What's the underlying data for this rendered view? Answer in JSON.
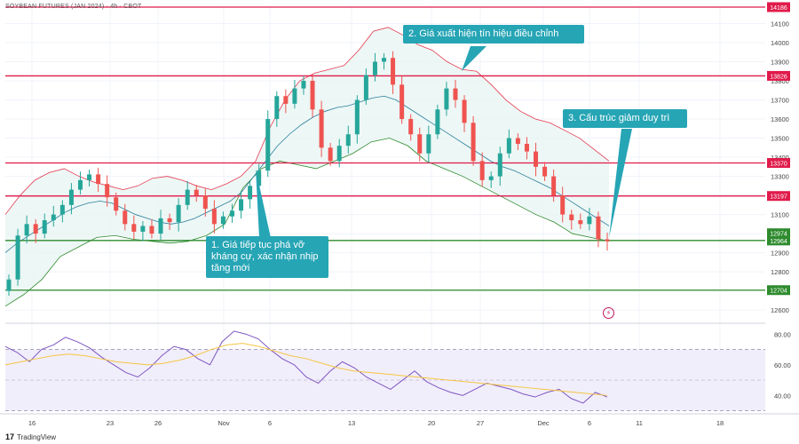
{
  "chart_title": "SOYBEAN FUTURES (JAN 2024) · 4h · CBOT",
  "footer_brand": "TradingView",
  "annotations": [
    {
      "text": "1. Giá tiếp tục phá vỡ kháng cự, xác nhận nhịp tăng mới"
    },
    {
      "text": "2. Giá xuất hiện tín hiệu điều chỉnh"
    },
    {
      "text": "3. Cấu trúc giảm duy trì"
    }
  ],
  "flag_icon": "lightning-icon",
  "chart_data": [
    {
      "type": "line",
      "title": "SOYBEAN FUTURES (JAN 2024) · 4h · CBOT",
      "x_tick_labels": [
        "16",
        "23",
        "26",
        "Nov",
        "6",
        "13",
        "20",
        "27",
        "Dec",
        "6",
        "11",
        "18"
      ],
      "y_tick_labels": [
        12600,
        12700,
        12800,
        12900,
        13000,
        13100,
        13200,
        13300,
        13400,
        13500,
        13600,
        13700,
        13800,
        13900,
        14000,
        14100
      ],
      "ylim": [
        12540,
        14200
      ],
      "levels": [
        {
          "value": 14186,
          "label": "14186",
          "color": "#e01b4b"
        },
        {
          "value": 13826,
          "label": "13826",
          "color": "#e01b4b"
        },
        {
          "value": 13370,
          "label": "13370",
          "color": "#e01b4b"
        },
        {
          "value": 13197,
          "label": "13197",
          "color": "#e01b4b"
        },
        {
          "value": 12964,
          "label": "12964",
          "color": "#2e8b2e"
        },
        {
          "value": 12704,
          "label": "12704",
          "color": "#2e8b2e"
        }
      ],
      "price_marker": {
        "value": 12974,
        "label": "12974",
        "color": "#2e8b2e"
      },
      "series": [
        {
          "values": [
            12760,
            12990,
            13050,
            13000,
            13070,
            13100,
            13150,
            13230,
            13280,
            13310,
            13260,
            13190,
            13120,
            13050,
            13010,
            13040,
            13000,
            13080,
            13060,
            13150,
            13230,
            13200,
            13130,
            13050,
            13090,
            13120,
            13180,
            13250,
            13330,
            13600,
            13720,
            13680,
            13760,
            13800,
            13650,
            13450,
            13380,
            13460,
            13520,
            13700,
            13830,
            13900,
            13920,
            13780,
            13600,
            13520,
            13420,
            13520,
            13650,
            13760,
            13700,
            13580,
            13380,
            13280,
            13300,
            13420,
            13500,
            13470,
            13430,
            13350,
            13300,
            13200,
            13100,
            13070,
            13050,
            13090,
            12970,
            12960
          ]
        },
        {
          "values": [
            12900,
            12950,
            12990,
            13030,
            13070,
            13110,
            13140,
            13160,
            13170,
            13160,
            13130,
            13100,
            13080,
            13060,
            13050,
            13060,
            13080,
            13110,
            13140,
            13170,
            13220,
            13300,
            13380,
            13460,
            13520,
            13570,
            13610,
            13640,
            13660,
            13670,
            13690,
            13710,
            13720,
            13700,
            13660,
            13620,
            13580,
            13540,
            13500,
            13460,
            13420,
            13380,
            13350,
            13330,
            13300,
            13270,
            13240,
            13200,
            13160,
            13120,
            13080,
            13040
          ]
        },
        {
          "values": [
            13100,
            13200,
            13280,
            13320,
            13340,
            13300,
            13270,
            13250,
            13230,
            13250,
            13290,
            13300,
            13280,
            13250,
            13230,
            13260,
            13300,
            13380,
            13560,
            13700,
            13800,
            13840,
            13860,
            13880,
            13960,
            14060,
            14080,
            14040,
            13990,
            13960,
            13900,
            13860,
            13850,
            13780,
            13700,
            13640,
            13600,
            13580,
            13540,
            13500,
            13440,
            13380
          ]
        },
        {
          "values": [
            12620,
            12680,
            12760,
            12880,
            12930,
            12980,
            12990,
            12970,
            12960,
            12950,
            12960,
            12990,
            13050,
            13240,
            13340,
            13380,
            13360,
            13340,
            13380,
            13420,
            13480,
            13500,
            13460,
            13380,
            13340,
            13300,
            13250,
            13200,
            13150,
            13100,
            13060,
            13000,
            12980,
            12960
          ]
        },
        {
          "values": [
            72,
            68,
            62,
            70,
            73,
            78,
            75,
            71,
            65,
            60,
            55,
            52,
            58,
            66,
            72,
            70,
            64,
            60,
            75,
            82,
            80,
            77,
            70,
            64,
            60,
            52,
            48,
            56,
            62,
            58,
            52,
            48,
            44,
            50,
            56,
            49,
            45,
            42,
            40,
            44,
            48,
            46,
            44,
            41,
            39,
            42,
            44,
            38,
            35,
            42,
            39
          ]
        },
        {
          "values": [
            60,
            62,
            64,
            66,
            67,
            66,
            64,
            62,
            61,
            60,
            61,
            63,
            66,
            70,
            73,
            74,
            72,
            69,
            66,
            64,
            61,
            58,
            56,
            55,
            54,
            53,
            52,
            51,
            50,
            49,
            48,
            47,
            46,
            45,
            44,
            43,
            42,
            41,
            40
          ]
        }
      ],
      "indicator": {
        "y_tick_labels": [
          40,
          60,
          80
        ],
        "ylim": [
          28,
          86
        ],
        "bands": [
          30,
          50,
          70
        ]
      }
    }
  ]
}
